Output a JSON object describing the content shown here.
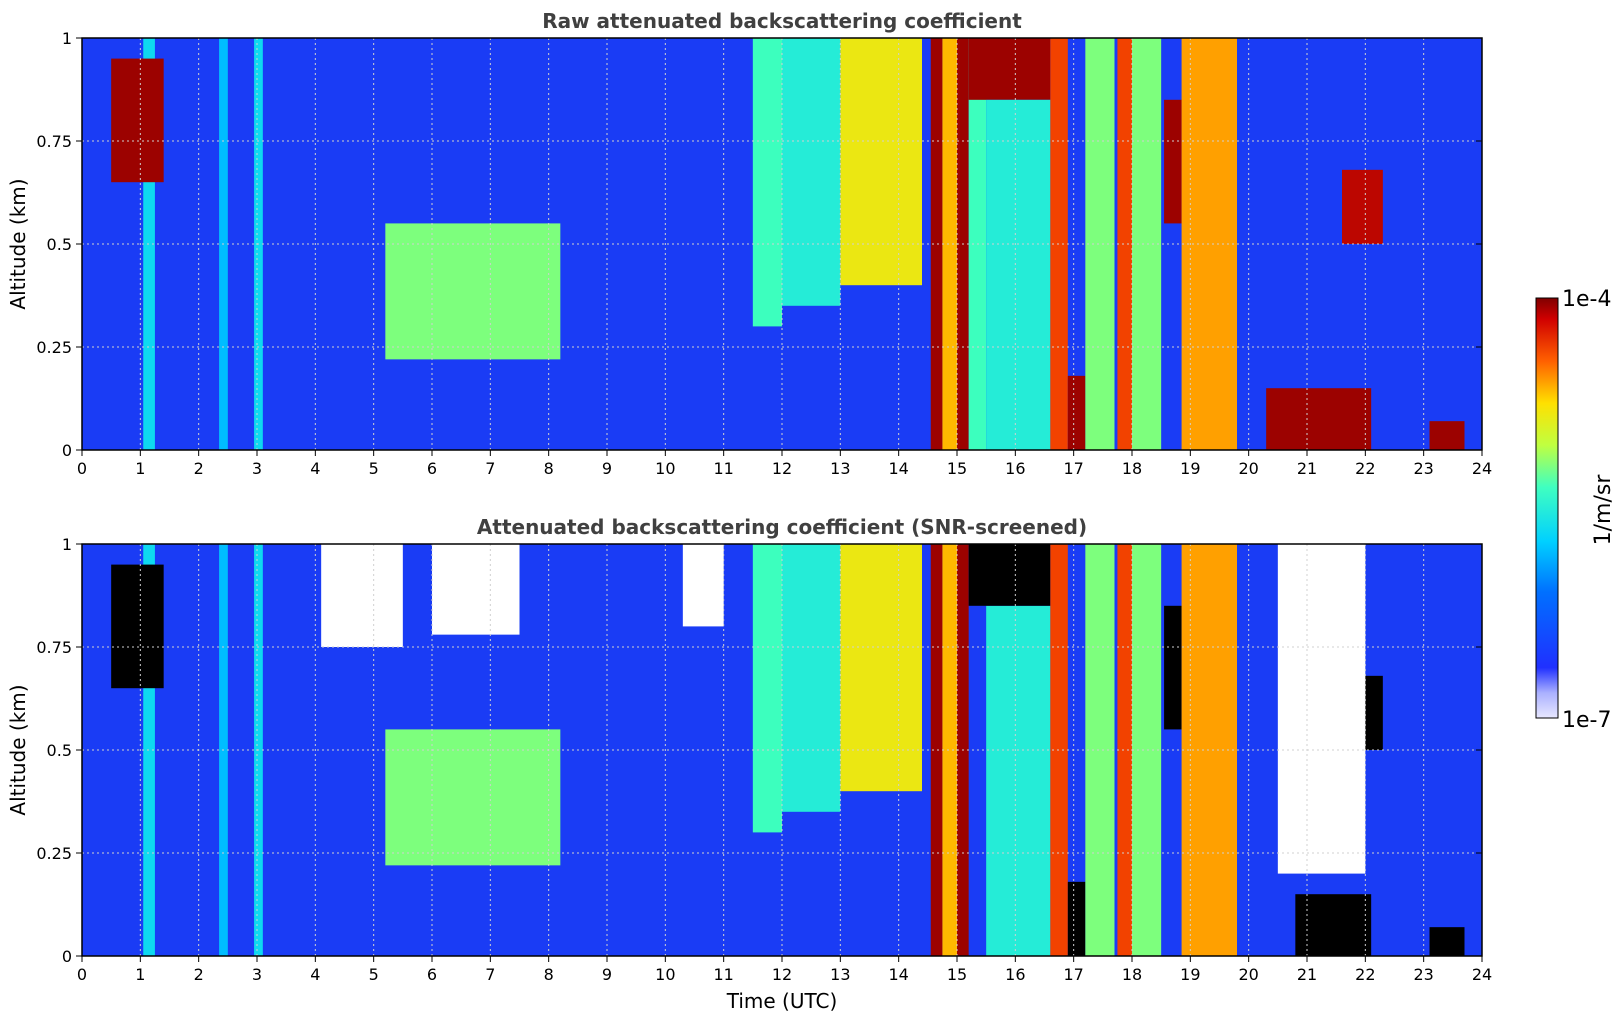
{
  "chart_data": [
    {
      "type": "heatmap",
      "title": "Raw attenuated backscattering coefficient",
      "xlabel": "",
      "ylabel": "Altitude (km)",
      "xlim": [
        0,
        24
      ],
      "ylim": [
        0,
        1
      ],
      "x_ticks": [
        "0",
        "1",
        "2",
        "3",
        "4",
        "5",
        "6",
        "7",
        "8",
        "9",
        "10",
        "11",
        "12",
        "13",
        "14",
        "15",
        "16",
        "17",
        "18",
        "19",
        "20",
        "21",
        "22",
        "23",
        "24"
      ],
      "y_ticks": [
        "0",
        "0.25",
        "0.5",
        "0.75",
        "1"
      ],
      "grid": true,
      "colormap": "jet",
      "bands": [
        {
          "x": [
            1.05,
            1.25
          ],
          "y": [
            0,
            1
          ],
          "level": 0.45
        },
        {
          "x": [
            2.35,
            2.5
          ],
          "y": [
            0,
            1
          ],
          "level": 0.4
        },
        {
          "x": [
            2.95,
            3.1
          ],
          "y": [
            0,
            1
          ],
          "level": 0.45
        },
        {
          "x": [
            5.2,
            8.2
          ],
          "y": [
            0.22,
            0.55
          ],
          "level": 0.6
        },
        {
          "x": [
            11.5,
            12.0
          ],
          "y": [
            0.3,
            1
          ],
          "level": 0.55
        },
        {
          "x": [
            12.0,
            13.0
          ],
          "y": [
            0.35,
            1
          ],
          "level": 0.5
        },
        {
          "x": [
            13.0,
            14.4
          ],
          "y": [
            0.4,
            1
          ],
          "level": 0.72
        },
        {
          "x": [
            14.55,
            14.75
          ],
          "y": [
            0,
            1
          ],
          "level": 0.97
        },
        {
          "x": [
            14.75,
            15.0
          ],
          "y": [
            0,
            1
          ],
          "level": 0.78
        },
        {
          "x": [
            15.0,
            15.2
          ],
          "y": [
            0,
            1
          ],
          "level": 0.97
        },
        {
          "x": [
            15.2,
            15.5
          ],
          "y": [
            0,
            1
          ],
          "level": 0.55
        },
        {
          "x": [
            15.2,
            16.6
          ],
          "y": [
            0.85,
            1
          ],
          "level": 0.97
        },
        {
          "x": [
            15.5,
            16.6
          ],
          "y": [
            0,
            0.85
          ],
          "level": 0.5
        },
        {
          "x": [
            16.6,
            16.9
          ],
          "y": [
            0,
            1
          ],
          "level": 0.88
        },
        {
          "x": [
            16.9,
            17.2
          ],
          "y": [
            0,
            0.18
          ],
          "level": 0.97
        },
        {
          "x": [
            17.2,
            17.7
          ],
          "y": [
            0,
            1
          ],
          "level": 0.6
        },
        {
          "x": [
            17.75,
            18.0
          ],
          "y": [
            0,
            1
          ],
          "level": 0.88
        },
        {
          "x": [
            18.0,
            18.5
          ],
          "y": [
            0,
            1
          ],
          "level": 0.6
        },
        {
          "x": [
            18.55,
            18.85
          ],
          "y": [
            0.55,
            0.85
          ],
          "level": 0.97
        },
        {
          "x": [
            18.85,
            19.8
          ],
          "y": [
            0,
            1
          ],
          "level": 0.8
        },
        {
          "x": [
            20.3,
            22.1
          ],
          "y": [
            0,
            0.15
          ],
          "level": 0.97
        },
        {
          "x": [
            21.6,
            22.3
          ],
          "y": [
            0.5,
            0.68
          ],
          "level": 0.95
        },
        {
          "x": [
            23.1,
            23.7
          ],
          "y": [
            0,
            0.07
          ],
          "level": 0.97
        },
        {
          "x": [
            0.5,
            1.4
          ],
          "y": [
            0.65,
            0.95
          ],
          "level": 0.97
        }
      ]
    },
    {
      "type": "heatmap",
      "title": "Attenuated backscattering coefficient (SNR-screened)",
      "xlabel": "Time (UTC)",
      "ylabel": "Altitude (km)",
      "xlim": [
        0,
        24
      ],
      "ylim": [
        0,
        1
      ],
      "x_ticks": [
        "0",
        "1",
        "2",
        "3",
        "4",
        "5",
        "6",
        "7",
        "8",
        "9",
        "10",
        "11",
        "12",
        "13",
        "14",
        "15",
        "16",
        "17",
        "18",
        "19",
        "20",
        "21",
        "22",
        "23",
        "24"
      ],
      "y_ticks": [
        "0",
        "0.25",
        "0.5",
        "0.75",
        "1"
      ],
      "grid": true,
      "colormap": "jet",
      "bands": [
        {
          "x": [
            1.05,
            1.25
          ],
          "y": [
            0,
            1
          ],
          "level": 0.45
        },
        {
          "x": [
            2.35,
            2.5
          ],
          "y": [
            0,
            1
          ],
          "level": 0.4
        },
        {
          "x": [
            2.95,
            3.1
          ],
          "y": [
            0,
            1
          ],
          "level": 0.45
        },
        {
          "x": [
            5.2,
            8.2
          ],
          "y": [
            0.22,
            0.55
          ],
          "level": 0.6
        },
        {
          "x": [
            11.5,
            12.0
          ],
          "y": [
            0.3,
            1
          ],
          "level": 0.55
        },
        {
          "x": [
            12.0,
            13.0
          ],
          "y": [
            0.35,
            1
          ],
          "level": 0.5
        },
        {
          "x": [
            13.0,
            14.4
          ],
          "y": [
            0.4,
            1
          ],
          "level": 0.72
        },
        {
          "x": [
            14.55,
            14.75
          ],
          "y": [
            0,
            1
          ],
          "level": 0.97
        },
        {
          "x": [
            14.75,
            15.0
          ],
          "y": [
            0,
            1
          ],
          "level": 0.78
        },
        {
          "x": [
            15.0,
            15.2
          ],
          "y": [
            0,
            1
          ],
          "level": 0.97
        },
        {
          "x": [
            15.5,
            16.6
          ],
          "y": [
            0,
            0.85
          ],
          "level": 0.5
        },
        {
          "x": [
            15.2,
            16.6
          ],
          "y": [
            0.85,
            1
          ],
          "level": 1.0
        },
        {
          "x": [
            16.6,
            16.9
          ],
          "y": [
            0,
            1
          ],
          "level": 0.88
        },
        {
          "x": [
            16.9,
            17.2
          ],
          "y": [
            0,
            0.18
          ],
          "level": 1.0
        },
        {
          "x": [
            17.2,
            17.7
          ],
          "y": [
            0,
            1
          ],
          "level": 0.6
        },
        {
          "x": [
            17.75,
            18.0
          ],
          "y": [
            0,
            1
          ],
          "level": 0.88
        },
        {
          "x": [
            18.0,
            18.5
          ],
          "y": [
            0,
            1
          ],
          "level": 0.6
        },
        {
          "x": [
            18.55,
            18.85
          ],
          "y": [
            0.55,
            0.85
          ],
          "level": 1.0
        },
        {
          "x": [
            18.85,
            19.8
          ],
          "y": [
            0,
            1
          ],
          "level": 0.8
        },
        {
          "x": [
            20.8,
            22.1
          ],
          "y": [
            0,
            0.15
          ],
          "level": 1.0
        },
        {
          "x": [
            21.6,
            22.3
          ],
          "y": [
            0.5,
            0.68
          ],
          "level": 1.0
        },
        {
          "x": [
            23.1,
            23.7
          ],
          "y": [
            0,
            0.07
          ],
          "level": 1.0
        },
        {
          "x": [
            0.5,
            1.4
          ],
          "y": [
            0.65,
            0.95
          ],
          "level": 1.0
        },
        {
          "x": [
            4.1,
            5.5
          ],
          "y": [
            0.75,
            1
          ],
          "level": -1
        },
        {
          "x": [
            6.0,
            7.5
          ],
          "y": [
            0.78,
            1
          ],
          "level": -1
        },
        {
          "x": [
            20.5,
            22.0
          ],
          "y": [
            0.2,
            1
          ],
          "level": -1
        },
        {
          "x": [
            10.3,
            11.0
          ],
          "y": [
            0.8,
            1
          ],
          "level": -1
        }
      ]
    }
  ],
  "colorbar": {
    "label": "1/m/sr",
    "max_label": "1e-4",
    "min_label": "1e-7",
    "range": [
      1e-07,
      0.0001
    ]
  },
  "colors": {
    "background_level": "#1432f0",
    "black": "#000000"
  }
}
